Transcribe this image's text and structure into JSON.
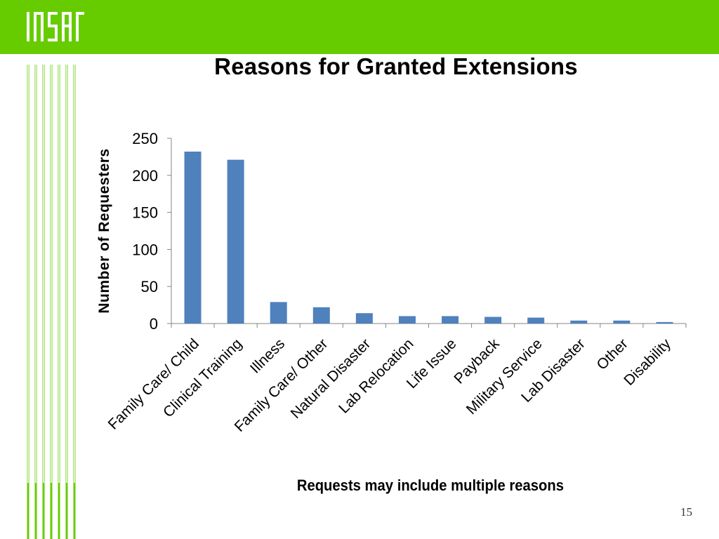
{
  "slide": {
    "title": "Reasons for Granted Extensions",
    "note": "Requests may include multiple reasons",
    "page_number": "15",
    "logo_icon": "nsr-logo-icon",
    "colors": {
      "top_bar": "#66cc00",
      "accent_lines": "#66cc00",
      "bar": "#4f81bd"
    }
  },
  "chart_data": {
    "type": "bar",
    "title": "Reasons for Granted Extensions",
    "xlabel": "",
    "ylabel": "Number of Requesters",
    "ylim": [
      0,
      250
    ],
    "yticks": [
      0,
      50,
      100,
      150,
      200,
      250
    ],
    "grid": false,
    "legend": "none",
    "categories": [
      "Family Care/ Child",
      "Clinical Training",
      "Illness",
      "Family Care/ Other",
      "Natural Disaster",
      "Lab Relocation",
      "Life Issue",
      "Payback",
      "Military Service",
      "Lab Disaster",
      "Other",
      "Disability"
    ],
    "values": [
      232,
      221,
      29,
      22,
      14,
      10,
      10,
      9,
      8,
      4,
      4,
      2
    ]
  }
}
